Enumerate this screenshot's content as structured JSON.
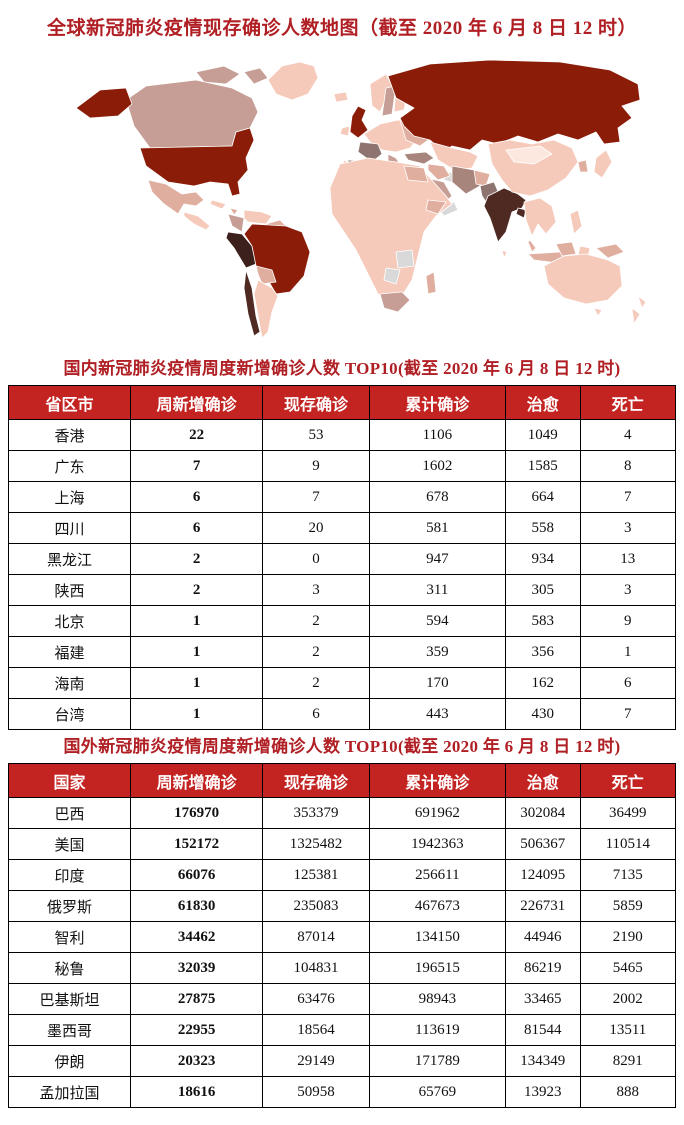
{
  "page": {
    "main_title": "全球新冠肺炎疫情现存确诊人数地图（截至 2020 年 6 月 8 日 12 时）"
  },
  "colors": {
    "title_red": "#b01f24",
    "table_header_bg": "#c32422",
    "table_header_text": "#ffffff",
    "table_border": "#000000",
    "cell_text": "#111111"
  },
  "map": {
    "description": "world-choropleth-of-active-confirmed-cases",
    "palette": {
      "level_1": "#fce8df",
      "level_2": "#f6cabb",
      "level_3": "#e0ae9e",
      "level_4": "#c69e95",
      "level_5": "#a8857c",
      "level_6": "#8e7470",
      "level_7": "#8a1c08",
      "level_8": "#4f2a22",
      "level_9": "#3b201b",
      "no_data": "#d9d9d9",
      "border": "#ffffff",
      "sea": "#ffffff"
    }
  },
  "tables": {
    "domestic": {
      "title": "国内新冠肺炎疫情周度新增确诊人数 TOP10(截至 2020 年 6 月 8 日 12 时)",
      "headers": [
        "省区市",
        "周新增确诊",
        "现存确诊",
        "累计确诊",
        "治愈",
        "死亡"
      ],
      "rows": [
        [
          "香港",
          "22",
          "53",
          "1106",
          "1049",
          "4"
        ],
        [
          "广东",
          "7",
          "9",
          "1602",
          "1585",
          "8"
        ],
        [
          "上海",
          "6",
          "7",
          "678",
          "664",
          "7"
        ],
        [
          "四川",
          "6",
          "20",
          "581",
          "558",
          "3"
        ],
        [
          "黑龙江",
          "2",
          "0",
          "947",
          "934",
          "13"
        ],
        [
          "陕西",
          "2",
          "3",
          "311",
          "305",
          "3"
        ],
        [
          "北京",
          "1",
          "2",
          "594",
          "583",
          "9"
        ],
        [
          "福建",
          "1",
          "2",
          "359",
          "356",
          "1"
        ],
        [
          "海南",
          "1",
          "2",
          "170",
          "162",
          "6"
        ],
        [
          "台湾",
          "1",
          "6",
          "443",
          "430",
          "7"
        ]
      ]
    },
    "international": {
      "title": "国外新冠肺炎疫情周度新增确诊人数 TOP10(截至 2020 年 6 月 8 日 12 时)",
      "headers": [
        "国家",
        "周新增确诊",
        "现存确诊",
        "累计确诊",
        "治愈",
        "死亡"
      ],
      "rows": [
        [
          "巴西",
          "176970",
          "353379",
          "691962",
          "302084",
          "36499"
        ],
        [
          "美国",
          "152172",
          "1325482",
          "1942363",
          "506367",
          "110514"
        ],
        [
          "印度",
          "66076",
          "125381",
          "256611",
          "124095",
          "7135"
        ],
        [
          "俄罗斯",
          "61830",
          "235083",
          "467673",
          "226731",
          "5859"
        ],
        [
          "智利",
          "34462",
          "87014",
          "134150",
          "44946",
          "2190"
        ],
        [
          "秘鲁",
          "32039",
          "104831",
          "196515",
          "86219",
          "5465"
        ],
        [
          "巴基斯坦",
          "27875",
          "63476",
          "98943",
          "33465",
          "2002"
        ],
        [
          "墨西哥",
          "22955",
          "18564",
          "113619",
          "81544",
          "13511"
        ],
        [
          "伊朗",
          "20323",
          "29149",
          "171789",
          "134349",
          "8291"
        ],
        [
          "孟加拉国",
          "18616",
          "50958",
          "65769",
          "13923",
          "888"
        ]
      ]
    }
  }
}
